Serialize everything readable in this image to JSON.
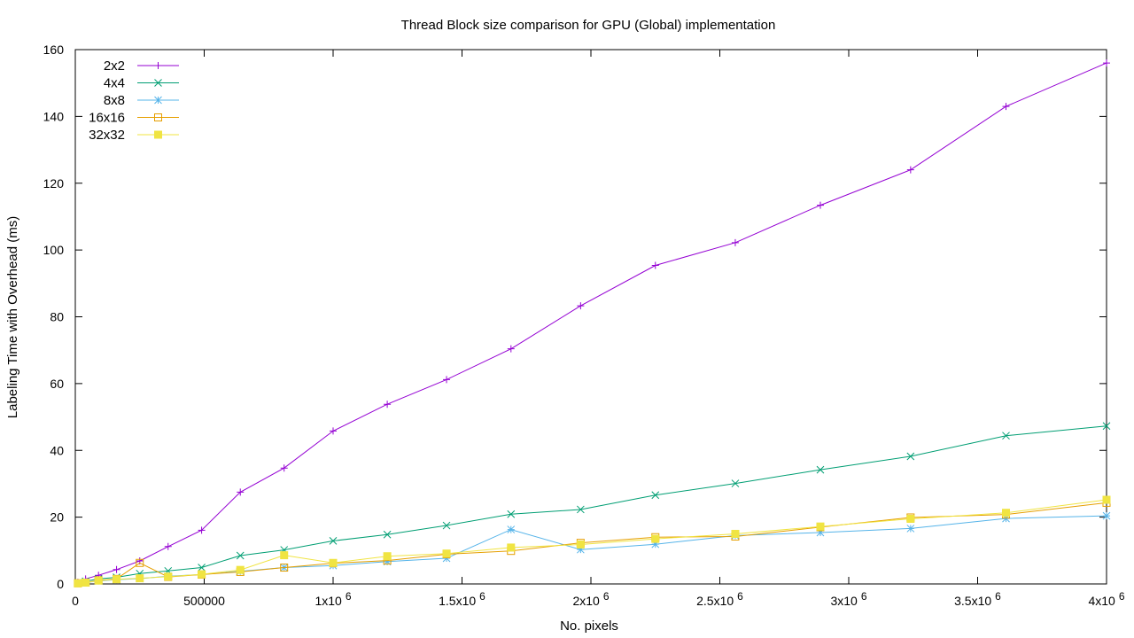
{
  "chart_data": {
    "type": "line",
    "title": "Thread Block size comparison for GPU (Global) implementation",
    "xlabel": "No. pixels",
    "ylabel": "Labeling Time with Overhead (ms)",
    "xlim": [
      0,
      4000000
    ],
    "ylim": [
      0,
      160
    ],
    "grid": false,
    "legend_position": "top-left",
    "x_ticks": [
      {
        "value": 0,
        "label": "0"
      },
      {
        "value": 500000,
        "label": "500000"
      },
      {
        "value": 1000000,
        "label": "1x10",
        "exp": "6"
      },
      {
        "value": 1500000,
        "label": "1.5x10",
        "exp": "6"
      },
      {
        "value": 2000000,
        "label": "2x10",
        "exp": "6"
      },
      {
        "value": 2500000,
        "label": "2.5x10",
        "exp": "6"
      },
      {
        "value": 3000000,
        "label": "3x10",
        "exp": "6"
      },
      {
        "value": 3500000,
        "label": "3.5x10",
        "exp": "6"
      },
      {
        "value": 4000000,
        "label": "4x10",
        "exp": "6"
      }
    ],
    "y_ticks": [
      {
        "value": 0,
        "label": "0"
      },
      {
        "value": 20,
        "label": "20"
      },
      {
        "value": 40,
        "label": "40"
      },
      {
        "value": 60,
        "label": "60"
      },
      {
        "value": 80,
        "label": "80"
      },
      {
        "value": 100,
        "label": "100"
      },
      {
        "value": 120,
        "label": "120"
      },
      {
        "value": 140,
        "label": "140"
      },
      {
        "value": 160,
        "label": "160"
      }
    ],
    "x": [
      10000,
      40000,
      90000,
      160000,
      250000,
      360000,
      490000,
      640000,
      810000,
      1000000,
      1210000,
      1440000,
      1690000,
      1960000,
      2250000,
      2560000,
      2890000,
      3240000,
      3610000,
      4000000
    ],
    "series": [
      {
        "name": "2x2",
        "color": "#9400d3",
        "marker": "plus",
        "values": [
          0.5,
          1.5,
          2.6,
          4.3,
          6.9,
          11.2,
          16.1,
          27.5,
          34.7,
          45.8,
          53.8,
          61.2,
          70.4,
          83.3,
          95.4,
          102.2,
          113.4,
          124.0,
          143.0,
          156.0
        ]
      },
      {
        "name": "4x4",
        "color": "#009e73",
        "marker": "cross",
        "values": [
          0.3,
          0.8,
          1.5,
          2.0,
          3.1,
          3.9,
          4.9,
          8.5,
          10.2,
          12.9,
          14.8,
          17.5,
          20.9,
          22.3,
          26.6,
          30.1,
          34.2,
          38.2,
          44.4,
          47.3
        ]
      },
      {
        "name": "8x8",
        "color": "#56b4e9",
        "marker": "star",
        "values": [
          0.2,
          0.4,
          0.9,
          1.3,
          1.6,
          2.3,
          2.8,
          3.8,
          4.9,
          5.5,
          6.7,
          7.7,
          16.3,
          10.3,
          11.9,
          14.5,
          15.4,
          16.6,
          19.6,
          20.4
        ]
      },
      {
        "name": "16x16",
        "color": "#e69f00",
        "marker": "box",
        "values": [
          0.2,
          0.4,
          1.1,
          1.5,
          6.3,
          2.1,
          2.8,
          3.6,
          4.9,
          6.2,
          7.0,
          8.9,
          9.9,
          12.3,
          14.0,
          14.2,
          17.0,
          19.9,
          20.8,
          24.3
        ]
      },
      {
        "name": "32x32",
        "color": "#f0e442",
        "marker": "filled-box",
        "values": [
          0.2,
          0.4,
          1.0,
          1.4,
          1.7,
          2.2,
          2.9,
          4.2,
          8.6,
          6.3,
          8.3,
          9.1,
          10.9,
          11.8,
          13.5,
          15.0,
          17.2,
          19.5,
          21.3,
          25.2
        ]
      }
    ]
  }
}
